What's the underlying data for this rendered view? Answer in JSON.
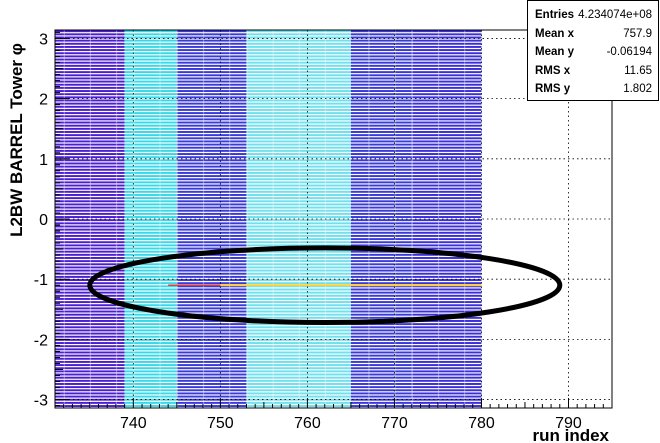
{
  "chart_data": {
    "type": "heatmap",
    "title": "",
    "xlabel": "run index",
    "ylabel": "L2BW BARREL Tower  φ",
    "xlim": [
      731,
      795
    ],
    "ylim": [
      -3.14,
      3.14
    ],
    "x_ticks": [
      740,
      750,
      760,
      770,
      780,
      790
    ],
    "y_ticks": [
      -3,
      -2,
      -1,
      0,
      1,
      2,
      3
    ],
    "grid": true,
    "filled_x_range": [
      731,
      780
    ],
    "phi_bins": 120,
    "column_groups": [
      {
        "x_range": [
          731,
          739
        ],
        "color": "#4b1fd0",
        "label": "blue-purple"
      },
      {
        "x_range": [
          739,
          745
        ],
        "color": "#38d8e8",
        "label": "cyan"
      },
      {
        "x_range": [
          745,
          753
        ],
        "color": "#3a3ad8",
        "label": "blue"
      },
      {
        "x_range": [
          753,
          765
        ],
        "color": "#6fe0ee",
        "label": "light-cyan"
      },
      {
        "x_range": [
          765,
          772
        ],
        "color": "#3a3ad8",
        "label": "blue"
      },
      {
        "x_range": [
          772,
          780
        ],
        "color": "#3b2fd8",
        "label": "blue"
      }
    ],
    "hot_row": {
      "y": -1.1,
      "x_range": [
        750,
        780
      ],
      "color": "#ffd23a"
    },
    "annotation": {
      "type": "ellipse",
      "cx": 762,
      "cy": -1.1,
      "rx": 27,
      "ry": 0.62
    }
  },
  "stats": {
    "entries_label": "Entries",
    "entries_value": "4.234074e+08",
    "mean_x_label": "Mean x",
    "mean_x_value": "757.9",
    "mean_y_label": "Mean y",
    "mean_y_value": "-0.06194",
    "rms_x_label": "RMS x",
    "rms_x_value": "11.65",
    "rms_y_label": "RMS y",
    "rms_y_value": "1.802"
  }
}
